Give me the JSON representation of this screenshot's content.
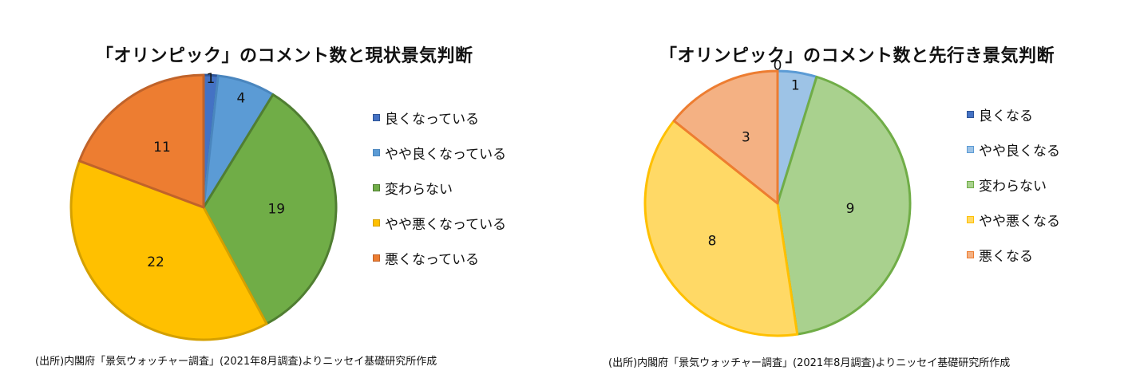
{
  "chart_data": [
    {
      "type": "pie",
      "title": "「オリンピック」のコメント数と現状景気判断",
      "categories": [
        "良くなっている",
        "やや良くなっている",
        "変わらない",
        "やや悪くなっている",
        "悪くなっている"
      ],
      "values": [
        1,
        4,
        19,
        22,
        11
      ],
      "data_labels": [
        "1",
        "4",
        "19",
        "22",
        "11"
      ],
      "colors": [
        "#4472C4",
        "#5B9BD5",
        "#70AD47",
        "#FFC000",
        "#ED7D31"
      ],
      "borders": [
        "#2F5597",
        "#4A86BE",
        "#507E32",
        "#D4A000",
        "#C0632A"
      ],
      "legend_position": "right",
      "source": "(出所)内閣府「景気ウォッチャー調査」(2021年8月調査)よりニッセイ基礎研究所作成"
    },
    {
      "type": "pie",
      "title": "「オリンピック」のコメント数と先行き景気判断",
      "categories": [
        "良くなる",
        "やや良くなる",
        "変わらない",
        "やや悪くなる",
        "悪くなる"
      ],
      "values": [
        0,
        1,
        9,
        8,
        3
      ],
      "data_labels": [
        "0",
        "1",
        "9",
        "8",
        "3"
      ],
      "colors": [
        "#4472C4",
        "#9DC3E6",
        "#A9D18E",
        "#FFD966",
        "#F4B183"
      ],
      "borders": [
        "#2F5597",
        "#5B9BD5",
        "#70AD47",
        "#FFC000",
        "#ED7D31"
      ],
      "legend_position": "right",
      "source": "(出所)内閣府「景気ウォッチャー調査」(2021年8月調査)よりニッセイ基礎研究所作成"
    }
  ]
}
